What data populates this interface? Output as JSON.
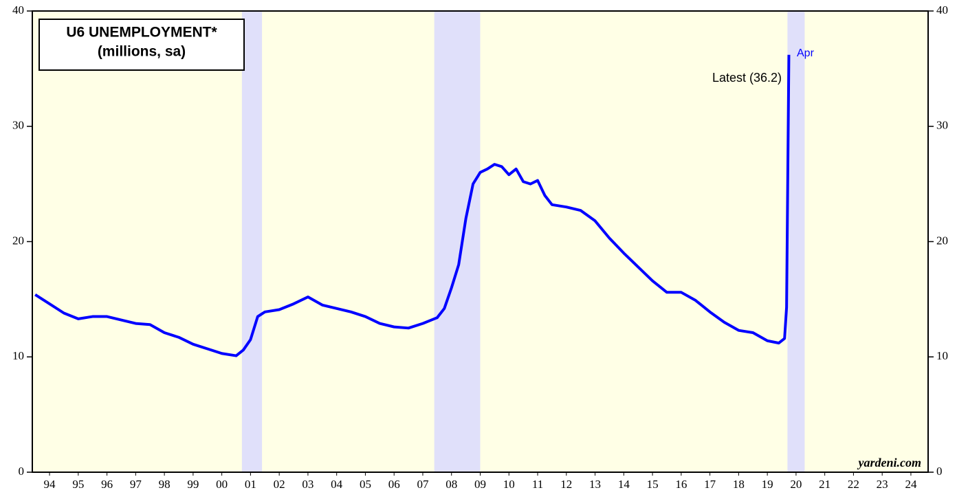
{
  "chart_data": {
    "type": "line",
    "title": "U6 UNEMPLOYMENT*",
    "subtitle": "(millions, sa)",
    "source": "yardeni.com",
    "annotations": [
      "Latest (36.2)",
      "Apr"
    ],
    "x": [
      1994.0,
      1994.5,
      1995.0,
      1995.5,
      1996.0,
      1996.5,
      1997.0,
      1997.5,
      1998.0,
      1998.5,
      1999.0,
      1999.5,
      2000.0,
      2000.5,
      2001.0,
      2001.25,
      2001.5,
      2001.75,
      2002.0,
      2002.5,
      2003.0,
      2003.5,
      2004.0,
      2004.5,
      2005.0,
      2005.5,
      2006.0,
      2006.5,
      2007.0,
      2007.5,
      2008.0,
      2008.25,
      2008.5,
      2008.75,
      2009.0,
      2009.25,
      2009.5,
      2009.75,
      2010.0,
      2010.25,
      2010.5,
      2010.75,
      2011.0,
      2011.25,
      2011.5,
      2011.75,
      2012.0,
      2012.5,
      2013.0,
      2013.5,
      2014.0,
      2014.5,
      2015.0,
      2015.5,
      2016.0,
      2016.5,
      2017.0,
      2017.5,
      2018.0,
      2018.5,
      2019.0,
      2019.5,
      2019.9,
      2020.1,
      2020.17,
      2020.25
    ],
    "series": [
      {
        "name": "U6 unemployment",
        "color": "#0000ff",
        "values": [
          15.4,
          14.6,
          13.8,
          13.3,
          13.5,
          13.5,
          13.2,
          12.9,
          12.8,
          12.1,
          11.7,
          11.1,
          10.7,
          10.3,
          10.1,
          10.6,
          11.5,
          13.5,
          13.9,
          14.1,
          14.6,
          15.2,
          14.5,
          14.2,
          13.9,
          13.5,
          12.9,
          12.6,
          12.5,
          12.9,
          13.4,
          14.2,
          16.0,
          18.0,
          22.0,
          25.0,
          26.0,
          26.3,
          26.7,
          26.5,
          25.8,
          26.3,
          25.2,
          25.0,
          25.3,
          24.0,
          23.2,
          23.0,
          22.7,
          21.8,
          20.3,
          19.0,
          17.8,
          16.6,
          15.6,
          15.6,
          14.9,
          13.9,
          13.0,
          12.3,
          12.1,
          11.4,
          11.2,
          11.6,
          14.3,
          36.2
        ]
      }
    ],
    "recessions": [
      [
        2001.2,
        2001.9
      ],
      [
        2007.9,
        2009.5
      ],
      [
        2020.2,
        2020.8
      ]
    ],
    "xlim": [
      1993.9,
      2025.1
    ],
    "ylim": [
      0,
      40
    ],
    "yticks": [
      0,
      10,
      20,
      30,
      40
    ],
    "xticks": [
      {
        "value": 1994.5,
        "label": "94"
      },
      {
        "value": 1995.5,
        "label": "95"
      },
      {
        "value": 1996.5,
        "label": "96"
      },
      {
        "value": 1997.5,
        "label": "97"
      },
      {
        "value": 1998.5,
        "label": "98"
      },
      {
        "value": 1999.5,
        "label": "99"
      },
      {
        "value": 2000.5,
        "label": "00"
      },
      {
        "value": 2001.5,
        "label": "01"
      },
      {
        "value": 2002.5,
        "label": "02"
      },
      {
        "value": 2003.5,
        "label": "03"
      },
      {
        "value": 2004.5,
        "label": "04"
      },
      {
        "value": 2005.5,
        "label": "05"
      },
      {
        "value": 2006.5,
        "label": "06"
      },
      {
        "value": 2007.5,
        "label": "07"
      },
      {
        "value": 2008.5,
        "label": "08"
      },
      {
        "value": 2009.5,
        "label": "09"
      },
      {
        "value": 2010.5,
        "label": "10"
      },
      {
        "value": 2011.5,
        "label": "11"
      },
      {
        "value": 2012.5,
        "label": "12"
      },
      {
        "value": 2013.5,
        "label": "13"
      },
      {
        "value": 2014.5,
        "label": "14"
      },
      {
        "value": 2015.5,
        "label": "15"
      },
      {
        "value": 2016.5,
        "label": "16"
      },
      {
        "value": 2017.5,
        "label": "17"
      },
      {
        "value": 2018.5,
        "label": "18"
      },
      {
        "value": 2019.5,
        "label": "19"
      },
      {
        "value": 2020.5,
        "label": "20"
      },
      {
        "value": 2021.5,
        "label": "21"
      },
      {
        "value": 2022.5,
        "label": "22"
      },
      {
        "value": 2023.5,
        "label": "23"
      },
      {
        "value": 2024.5,
        "label": "24"
      }
    ]
  }
}
